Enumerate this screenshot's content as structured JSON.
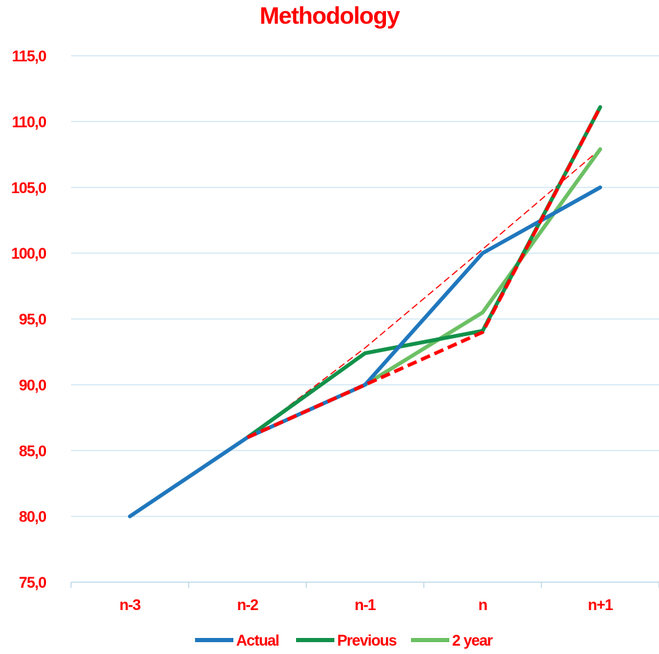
{
  "chart_data": {
    "type": "line",
    "title": "Methodology",
    "xlabel": "",
    "ylabel": "",
    "categories": [
      "n-3",
      "n-2",
      "n-1",
      "n",
      "n+1"
    ],
    "ylim": [
      75,
      115
    ],
    "yticks": [
      75,
      80,
      85,
      90,
      95,
      100,
      105,
      110,
      115
    ],
    "ytick_labels": [
      "75,0",
      "80,0",
      "85,0",
      "90,0",
      "95,0",
      "100,0",
      "105,0",
      "110,0",
      "115,0"
    ],
    "grid": true,
    "legend": "bottom",
    "series": [
      {
        "name": "Actual",
        "values": [
          80,
          86,
          90,
          100,
          105
        ],
        "color": "#1f77bd",
        "dashed": false
      },
      {
        "name": "Previous",
        "values": [
          null,
          86,
          92.4,
          94.1,
          111.1
        ],
        "color": "#12914a",
        "dashed": false
      },
      {
        "name": "2 year",
        "values": [
          null,
          null,
          90,
          95.5,
          107.9
        ],
        "color": "#6cc064",
        "dashed": false
      }
    ],
    "annotation_lines": [
      {
        "values": [
          null,
          86,
          90,
          94,
          111.1
        ],
        "color": "#ff0000",
        "style": "thick-dashed"
      },
      {
        "values": [
          null,
          86,
          92.8,
          100.3,
          107.9
        ],
        "color": "#ff0000",
        "style": "thin-dashed"
      }
    ],
    "colors": {
      "text": "#ff0000",
      "grid": "#cfe6f3",
      "axis": "#bcd8ea"
    }
  }
}
